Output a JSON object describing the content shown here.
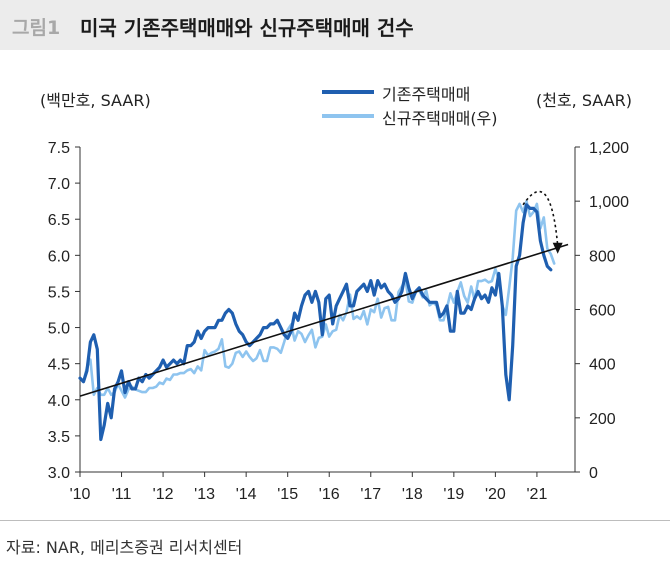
{
  "header": {
    "figure_label": "그림1",
    "title": "미국 기존주택매매와 신규주택매매 건수"
  },
  "source": "자료: NAR, 메리츠증권 리서치센터",
  "chart_data": {
    "type": "line",
    "title": "미국 기존주택매매와 신규주택매매 건수",
    "y_left_label": "(백만호, SAAR)",
    "y_right_label": "(천호, SAAR)",
    "y_left_range": [
      3.0,
      7.5
    ],
    "y_left_ticks": [
      "7.5",
      "7.0",
      "6.5",
      "6.0",
      "5.5",
      "5.0",
      "4.5",
      "4.0",
      "3.5",
      "3.0"
    ],
    "y_right_range": [
      0,
      1200
    ],
    "y_right_ticks": [
      "1,200",
      "1,000",
      "800",
      "600",
      "400",
      "200",
      "0"
    ],
    "x_range": [
      "2010-01",
      "2021-12"
    ],
    "x_ticks": [
      "'10",
      "'11",
      "'12",
      "'13",
      "'14",
      "'15",
      "'16",
      "'17",
      "'18",
      "'19",
      "'20",
      "'21"
    ],
    "grid": false,
    "legend_position": "top-center",
    "series": [
      {
        "name": "기존주택매매",
        "axis": "left",
        "color": "#1f5fb0",
        "points": [
          [
            "2010-01",
            4.3
          ],
          [
            "2010-02",
            4.25
          ],
          [
            "2010-03",
            4.4
          ],
          [
            "2010-04",
            4.8
          ],
          [
            "2010-05",
            4.9
          ],
          [
            "2010-06",
            4.7
          ],
          [
            "2010-07",
            3.45
          ],
          [
            "2010-08",
            3.65
          ],
          [
            "2010-09",
            3.95
          ],
          [
            "2010-10",
            3.75
          ],
          [
            "2010-11",
            4.15
          ],
          [
            "2010-12",
            4.25
          ],
          [
            "2011-01",
            4.4
          ],
          [
            "2011-02",
            4.1
          ],
          [
            "2011-03",
            4.25
          ],
          [
            "2011-04",
            4.15
          ],
          [
            "2011-05",
            4.15
          ],
          [
            "2011-06",
            4.3
          ],
          [
            "2011-07",
            4.25
          ],
          [
            "2011-08",
            4.35
          ],
          [
            "2011-09",
            4.3
          ],
          [
            "2011-10",
            4.35
          ],
          [
            "2011-11",
            4.4
          ],
          [
            "2011-12",
            4.45
          ],
          [
            "2012-01",
            4.55
          ],
          [
            "2012-02",
            4.45
          ],
          [
            "2012-03",
            4.5
          ],
          [
            "2012-04",
            4.55
          ],
          [
            "2012-05",
            4.5
          ],
          [
            "2012-06",
            4.55
          ],
          [
            "2012-07",
            4.5
          ],
          [
            "2012-08",
            4.75
          ],
          [
            "2012-09",
            4.75
          ],
          [
            "2012-10",
            4.8
          ],
          [
            "2012-11",
            4.95
          ],
          [
            "2012-12",
            4.85
          ],
          [
            "2013-01",
            4.95
          ],
          [
            "2013-02",
            5.0
          ],
          [
            "2013-03",
            5.0
          ],
          [
            "2013-04",
            5.0
          ],
          [
            "2013-05",
            5.1
          ],
          [
            "2013-06",
            5.1
          ],
          [
            "2013-07",
            5.2
          ],
          [
            "2013-08",
            5.25
          ],
          [
            "2013-09",
            5.2
          ],
          [
            "2013-10",
            5.05
          ],
          [
            "2013-11",
            4.95
          ],
          [
            "2013-12",
            4.9
          ],
          [
            "2014-01",
            4.8
          ],
          [
            "2014-02",
            4.75
          ],
          [
            "2014-03",
            4.8
          ],
          [
            "2014-04",
            4.85
          ],
          [
            "2014-05",
            4.9
          ],
          [
            "2014-06",
            5.0
          ],
          [
            "2014-07",
            5.0
          ],
          [
            "2014-08",
            5.05
          ],
          [
            "2014-09",
            5.05
          ],
          [
            "2014-10",
            5.1
          ],
          [
            "2014-11",
            5.0
          ],
          [
            "2014-12",
            4.9
          ],
          [
            "2015-01",
            4.85
          ],
          [
            "2015-02",
            4.95
          ],
          [
            "2015-03",
            5.2
          ],
          [
            "2015-04",
            5.1
          ],
          [
            "2015-05",
            5.3
          ],
          [
            "2015-06",
            5.45
          ],
          [
            "2015-07",
            5.5
          ],
          [
            "2015-08",
            5.35
          ],
          [
            "2015-09",
            5.5
          ],
          [
            "2015-10",
            5.35
          ],
          [
            "2015-11",
            4.9
          ],
          [
            "2015-12",
            5.4
          ],
          [
            "2016-01",
            5.45
          ],
          [
            "2016-02",
            5.05
          ],
          [
            "2016-03",
            5.3
          ],
          [
            "2016-04",
            5.4
          ],
          [
            "2016-05",
            5.5
          ],
          [
            "2016-06",
            5.6
          ],
          [
            "2016-07",
            5.3
          ],
          [
            "2016-08",
            5.3
          ],
          [
            "2016-09",
            5.5
          ],
          [
            "2016-10",
            5.55
          ],
          [
            "2016-11",
            5.6
          ],
          [
            "2016-12",
            5.5
          ],
          [
            "2017-01",
            5.65
          ],
          [
            "2017-02",
            5.45
          ],
          [
            "2017-03",
            5.65
          ],
          [
            "2017-04",
            5.55
          ],
          [
            "2017-05",
            5.6
          ],
          [
            "2017-06",
            5.5
          ],
          [
            "2017-07",
            5.45
          ],
          [
            "2017-08",
            5.35
          ],
          [
            "2017-09",
            5.4
          ],
          [
            "2017-10",
            5.5
          ],
          [
            "2017-11",
            5.75
          ],
          [
            "2017-12",
            5.55
          ],
          [
            "2018-01",
            5.4
          ],
          [
            "2018-02",
            5.5
          ],
          [
            "2018-03",
            5.55
          ],
          [
            "2018-04",
            5.45
          ],
          [
            "2018-05",
            5.4
          ],
          [
            "2018-06",
            5.35
          ],
          [
            "2018-07",
            5.35
          ],
          [
            "2018-08",
            5.35
          ],
          [
            "2018-09",
            5.15
          ],
          [
            "2018-10",
            5.2
          ],
          [
            "2018-11",
            5.3
          ],
          [
            "2018-12",
            4.95
          ],
          [
            "2019-01",
            4.95
          ],
          [
            "2019-02",
            5.5
          ],
          [
            "2019-03",
            5.2
          ],
          [
            "2019-04",
            5.2
          ],
          [
            "2019-05",
            5.3
          ],
          [
            "2019-06",
            5.25
          ],
          [
            "2019-07",
            5.4
          ],
          [
            "2019-08",
            5.5
          ],
          [
            "2019-09",
            5.4
          ],
          [
            "2019-10",
            5.45
          ],
          [
            "2019-11",
            5.35
          ],
          [
            "2019-12",
            5.55
          ],
          [
            "2020-01",
            5.45
          ],
          [
            "2020-02",
            5.75
          ],
          [
            "2020-03",
            5.3
          ],
          [
            "2020-04",
            4.35
          ],
          [
            "2020-05",
            4.0
          ],
          [
            "2020-06",
            4.75
          ],
          [
            "2020-07",
            5.85
          ],
          [
            "2020-08",
            6.0
          ],
          [
            "2020-09",
            6.45
          ],
          [
            "2020-10",
            6.7
          ],
          [
            "2020-11",
            6.65
          ],
          [
            "2020-12",
            6.65
          ],
          [
            "2021-01",
            6.6
          ],
          [
            "2021-02",
            6.2
          ],
          [
            "2021-03",
            6.0
          ],
          [
            "2021-04",
            5.85
          ],
          [
            "2021-05",
            5.8
          ]
        ]
      },
      {
        "name": "신규주택매매(우)",
        "axis": "right",
        "color": "#8ec4ef",
        "points": [
          [
            "2010-01",
            345
          ],
          [
            "2010-02",
            335
          ],
          [
            "2010-03",
            385
          ],
          [
            "2010-04",
            415
          ],
          [
            "2010-05",
            285
          ],
          [
            "2010-06",
            310
          ],
          [
            "2010-07",
            285
          ],
          [
            "2010-08",
            285
          ],
          [
            "2010-09",
            310
          ],
          [
            "2010-10",
            285
          ],
          [
            "2010-11",
            295
          ],
          [
            "2010-12",
            325
          ],
          [
            "2011-01",
            300
          ],
          [
            "2011-02",
            275
          ],
          [
            "2011-03",
            305
          ],
          [
            "2011-04",
            315
          ],
          [
            "2011-05",
            305
          ],
          [
            "2011-06",
            300
          ],
          [
            "2011-07",
            295
          ],
          [
            "2011-08",
            295
          ],
          [
            "2011-09",
            310
          ],
          [
            "2011-10",
            310
          ],
          [
            "2011-11",
            315
          ],
          [
            "2011-12",
            330
          ],
          [
            "2012-01",
            325
          ],
          [
            "2012-02",
            345
          ],
          [
            "2012-03",
            340
          ],
          [
            "2012-04",
            360
          ],
          [
            "2012-05",
            360
          ],
          [
            "2012-06",
            365
          ],
          [
            "2012-07",
            365
          ],
          [
            "2012-08",
            375
          ],
          [
            "2012-09",
            380
          ],
          [
            "2012-10",
            365
          ],
          [
            "2012-11",
            390
          ],
          [
            "2012-12",
            375
          ],
          [
            "2013-01",
            450
          ],
          [
            "2013-02",
            430
          ],
          [
            "2013-03",
            440
          ],
          [
            "2013-04",
            445
          ],
          [
            "2013-05",
            455
          ],
          [
            "2013-06",
            490
          ],
          [
            "2013-07",
            390
          ],
          [
            "2013-08",
            385
          ],
          [
            "2013-09",
            400
          ],
          [
            "2013-10",
            440
          ],
          [
            "2013-11",
            445
          ],
          [
            "2013-12",
            425
          ],
          [
            "2014-01",
            445
          ],
          [
            "2014-02",
            425
          ],
          [
            "2014-03",
            410
          ],
          [
            "2014-04",
            420
          ],
          [
            "2014-05",
            450
          ],
          [
            "2014-06",
            410
          ],
          [
            "2014-07",
            410
          ],
          [
            "2014-08",
            460
          ],
          [
            "2014-09",
            460
          ],
          [
            "2014-10",
            455
          ],
          [
            "2014-11",
            440
          ],
          [
            "2014-12",
            480
          ],
          [
            "2015-01",
            525
          ],
          [
            "2015-02",
            545
          ],
          [
            "2015-03",
            485
          ],
          [
            "2015-04",
            520
          ],
          [
            "2015-05",
            510
          ],
          [
            "2015-06",
            480
          ],
          [
            "2015-07",
            505
          ],
          [
            "2015-08",
            525
          ],
          [
            "2015-09",
            460
          ],
          [
            "2015-10",
            495
          ],
          [
            "2015-11",
            500
          ],
          [
            "2015-12",
            545
          ],
          [
            "2016-01",
            500
          ],
          [
            "2016-02",
            520
          ],
          [
            "2016-03",
            525
          ],
          [
            "2016-04",
            580
          ],
          [
            "2016-05",
            560
          ],
          [
            "2016-06",
            590
          ],
          [
            "2016-07",
            655
          ],
          [
            "2016-08",
            565
          ],
          [
            "2016-09",
            575
          ],
          [
            "2016-10",
            565
          ],
          [
            "2016-11",
            595
          ],
          [
            "2016-12",
            545
          ],
          [
            "2017-01",
            600
          ],
          [
            "2017-02",
            590
          ],
          [
            "2017-03",
            640
          ],
          [
            "2017-04",
            570
          ],
          [
            "2017-05",
            605
          ],
          [
            "2017-06",
            610
          ],
          [
            "2017-07",
            560
          ],
          [
            "2017-08",
            560
          ],
          [
            "2017-09",
            665
          ],
          [
            "2017-10",
            685
          ],
          [
            "2017-11",
            710
          ],
          [
            "2017-12",
            630
          ],
          [
            "2018-01",
            625
          ],
          [
            "2018-02",
            665
          ],
          [
            "2018-03",
            670
          ],
          [
            "2018-04",
            645
          ],
          [
            "2018-05",
            670
          ],
          [
            "2018-06",
            615
          ],
          [
            "2018-07",
            625
          ],
          [
            "2018-08",
            615
          ],
          [
            "2018-09",
            560
          ],
          [
            "2018-10",
            560
          ],
          [
            "2018-11",
            605
          ],
          [
            "2018-12",
            660
          ],
          [
            "2019-01",
            625
          ],
          [
            "2019-02",
            665
          ],
          [
            "2019-03",
            700
          ],
          [
            "2019-04",
            650
          ],
          [
            "2019-05",
            625
          ],
          [
            "2019-06",
            685
          ],
          [
            "2019-07",
            635
          ],
          [
            "2019-08",
            705
          ],
          [
            "2019-09",
            705
          ],
          [
            "2019-10",
            710
          ],
          [
            "2019-11",
            700
          ],
          [
            "2019-12",
            705
          ],
          [
            "2020-01",
            750
          ],
          [
            "2020-02",
            710
          ],
          [
            "2020-03",
            615
          ],
          [
            "2020-04",
            580
          ],
          [
            "2020-05",
            680
          ],
          [
            "2020-06",
            790
          ],
          [
            "2020-07",
            965
          ],
          [
            "2020-08",
            990
          ],
          [
            "2020-09",
            960
          ],
          [
            "2020-10",
            1000
          ],
          [
            "2020-11",
            945
          ],
          [
            "2020-12",
            960
          ],
          [
            "2021-01",
            990
          ],
          [
            "2021-02",
            900
          ],
          [
            "2021-03",
            940
          ],
          [
            "2021-04",
            825
          ],
          [
            "2021-05",
            805
          ],
          [
            "2021-06",
            770
          ]
        ]
      }
    ],
    "annotations": [
      {
        "type": "trend-line",
        "axis": "left",
        "from": [
          "2010-01",
          4.05
        ],
        "to": [
          "2021-10",
          6.15
        ]
      },
      {
        "type": "curved-arrow",
        "axis": "left",
        "from": [
          "2020-09",
          6.7
        ],
        "to": [
          "2021-07",
          6.05
        ]
      }
    ]
  }
}
